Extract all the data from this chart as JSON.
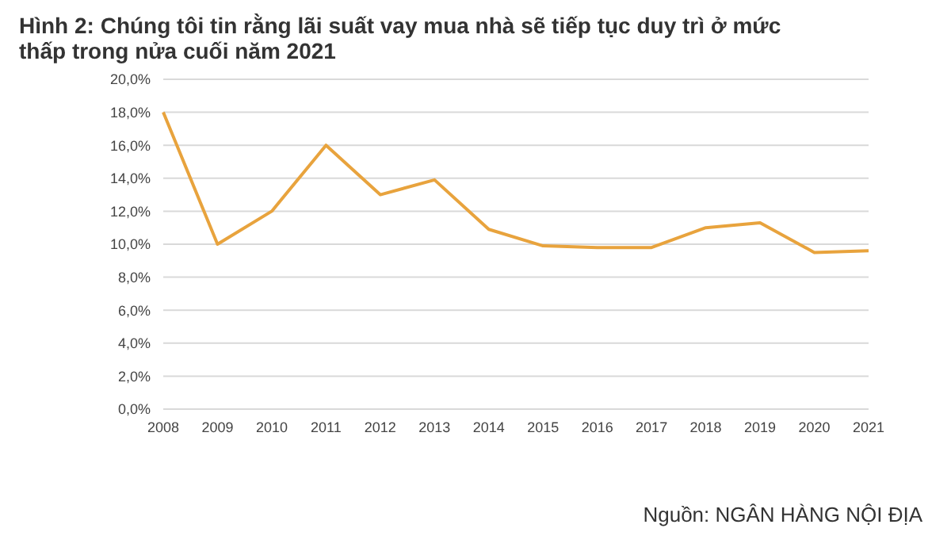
{
  "chart_data": {
    "type": "line",
    "title": "Hình 2: Chúng tôi tin rằng lãi suất vay mua nhà sẽ tiếp tục duy trì ở mức thấp trong nửa cuối năm 2021",
    "categories": [
      "2008",
      "2009",
      "2010",
      "2011",
      "2012",
      "2013",
      "2014",
      "2015",
      "2016",
      "2017",
      "2018",
      "2019",
      "2020",
      "2021"
    ],
    "series": [
      {
        "color": "#e8a33d",
        "values": [
          18,
          10,
          12,
          16,
          13,
          13.9,
          10.9,
          9.9,
          9.8,
          9.8,
          11,
          11.3,
          9.5,
          9.6
        ]
      }
    ],
    "ylim": [
      0,
      20
    ],
    "yticks": [
      {
        "value": 0,
        "label": "0,0%"
      },
      {
        "value": 2,
        "label": "2,0%"
      },
      {
        "value": 4,
        "label": "4,0%"
      },
      {
        "value": 6,
        "label": "6,0%"
      },
      {
        "value": 8,
        "label": "8,0%"
      },
      {
        "value": 10,
        "label": "10,0%"
      },
      {
        "value": 12,
        "label": "12,0%"
      },
      {
        "value": 14,
        "label": "14,0%"
      },
      {
        "value": 16,
        "label": "16,0%"
      },
      {
        "value": 18,
        "label": "18,0%"
      },
      {
        "value": 20,
        "label": "20,0%"
      }
    ],
    "grid": "y",
    "marker": "none",
    "line_style": "solid",
    "annotations": [
      "Nguồn: NGÂN HÀNG NỘI ĐỊA"
    ]
  }
}
